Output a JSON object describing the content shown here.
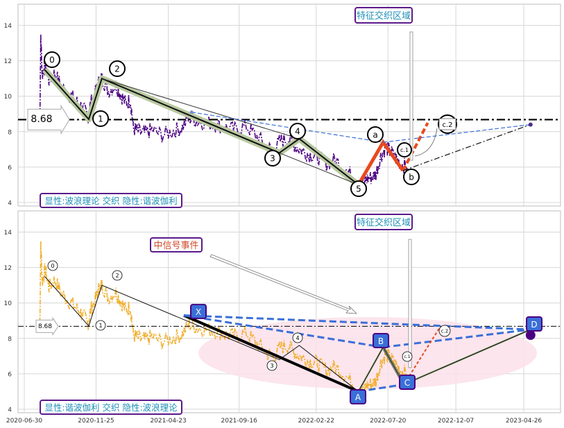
{
  "chart_data": [
    {
      "type": "line",
      "panel": "top",
      "ylim": [
        3.8,
        15.2
      ],
      "yticks": [
        4,
        6,
        8,
        10,
        12,
        14
      ],
      "grid": true,
      "price_color": "#4b0082",
      "price_series": [
        [
          "2020-08-01",
          8.4
        ],
        [
          "2020-08-03",
          13.4
        ],
        [
          "2020-08-06",
          11.2
        ],
        [
          "2020-08-12",
          11.9
        ],
        [
          "2020-08-20",
          10.9
        ],
        [
          "2020-09-01",
          11.3
        ],
        [
          "2020-09-15",
          10.5
        ],
        [
          "2020-10-01",
          10.1
        ],
        [
          "2020-10-15",
          9.7
        ],
        [
          "2020-10-28",
          9.4
        ],
        [
          "2020-11-08",
          8.8
        ],
        [
          "2020-11-14",
          9.6
        ],
        [
          "2020-11-25",
          10.3
        ],
        [
          "2020-12-02",
          10.9
        ],
        [
          "2020-12-08",
          11.0
        ],
        [
          "2020-12-20",
          10.3
        ],
        [
          "2021-01-05",
          10.6
        ],
        [
          "2021-01-15",
          10.1
        ],
        [
          "2021-01-25",
          9.6
        ],
        [
          "2021-02-04",
          9.8
        ],
        [
          "2021-02-10",
          8.2
        ],
        [
          "2021-02-20",
          8.0
        ],
        [
          "2021-03-05",
          7.9
        ],
        [
          "2021-03-20",
          8.1
        ],
        [
          "2021-04-10",
          7.8
        ],
        [
          "2021-05-01",
          8.0
        ],
        [
          "2021-05-20",
          8.2
        ],
        [
          "2021-06-05",
          8.8
        ],
        [
          "2021-06-20",
          8.6
        ],
        [
          "2021-07-10",
          8.5
        ],
        [
          "2021-08-01",
          8.4
        ],
        [
          "2021-08-20",
          8.2
        ],
        [
          "2021-09-10",
          8.1
        ],
        [
          "2021-10-01",
          8.3
        ],
        [
          "2021-10-20",
          7.8
        ],
        [
          "2021-11-10",
          7.2
        ],
        [
          "2021-11-25",
          6.9
        ],
        [
          "2021-12-10",
          7.5
        ],
        [
          "2021-12-25",
          7.6
        ],
        [
          "2022-01-10",
          7.2
        ],
        [
          "2022-01-25",
          6.9
        ],
        [
          "2022-02-10",
          6.7
        ],
        [
          "2022-02-25",
          6.6
        ],
        [
          "2022-03-15",
          6.2
        ],
        [
          "2022-04-01",
          6.4
        ],
        [
          "2022-04-20",
          6.0
        ],
        [
          "2022-05-10",
          5.4
        ],
        [
          "2022-05-25",
          5.1
        ],
        [
          "2022-06-05",
          5.3
        ],
        [
          "2022-06-15",
          5.4
        ],
        [
          "2022-06-25",
          5.6
        ],
        [
          "2022-07-05",
          6.6
        ],
        [
          "2022-07-15",
          7.1
        ],
        [
          "2022-07-25",
          6.9
        ],
        [
          "2022-08-05",
          6.5
        ],
        [
          "2022-08-15",
          6.2
        ],
        [
          "2022-08-28",
          6.0
        ]
      ],
      "waves": [
        {
          "label": "0",
          "date": "2020-08-11",
          "value": 11.5
        },
        {
          "label": "1",
          "date": "2020-11-10",
          "value": 8.7
        },
        {
          "label": "2",
          "date": "2020-12-07",
          "value": 11.0
        },
        {
          "label": "3",
          "date": "2021-12-08",
          "value": 6.8
        },
        {
          "label": "4",
          "date": "2022-01-18",
          "value": 7.6
        },
        {
          "label": "5",
          "date": "2022-05-20",
          "value": 5.0
        },
        {
          "label": "a",
          "date": "2022-07-10",
          "value": 7.4
        },
        {
          "label": "b",
          "date": "2022-08-20",
          "value": 5.8
        },
        {
          "label": "c.1",
          "date": "2022-08-10",
          "value": 6.3
        },
        {
          "label": "c.2",
          "date": "2022-10-15",
          "value": 8.5
        },
        {
          "label": "c",
          "date": "2022-10-10",
          "value": 8.5
        }
      ],
      "channel_lines": [
        {
          "from": [
            "2021-06-10",
            9.1
          ],
          "to": [
            "2022-07-10",
            7.4
          ]
        },
        {
          "from": [
            "2022-07-10",
            7.4
          ],
          "to": [
            "2023-05-10",
            8.4
          ]
        },
        {
          "from": [
            "2022-08-20",
            5.8
          ],
          "to": [
            "2023-05-10",
            8.4
          ]
        }
      ],
      "endpoint": [
        "2023-05-10",
        8.4
      ],
      "level_value": 8.68,
      "level_label": "8.68",
      "zone_label": "特征交织区域",
      "legend_text": "显性:波浪理论 交织 隐性:谐波伽利"
    },
    {
      "type": "line",
      "panel": "bottom",
      "ylim": [
        3.8,
        15.2
      ],
      "yticks": [
        4,
        6,
        8,
        10,
        12,
        14
      ],
      "grid": true,
      "price_color": "#f0b030",
      "harmonic_points": [
        {
          "label": "X",
          "date": "2021-05-25",
          "value": 9.3
        },
        {
          "label": "A",
          "date": "2022-05-20",
          "value": 5.0
        },
        {
          "label": "B",
          "date": "2022-07-10",
          "value": 7.5
        },
        {
          "label": "C",
          "date": "2022-08-22",
          "value": 5.4
        },
        {
          "label": "D",
          "date": "2023-05-10",
          "value": 8.5
        }
      ],
      "wave_labels": [
        "0",
        "1",
        "2",
        "3",
        "4",
        "c.1",
        "c.2"
      ],
      "level_label": "8.68",
      "zone_label": "特征交织区域",
      "event_label": "中信号事件",
      "legend_text": "显性:谐波伽利 交织 隐性:波浪理论"
    }
  ],
  "x_ticks": [
    "2020-06-30",
    "2020-11-25",
    "2021-04-23",
    "2021-09-16",
    "2022-02-22",
    "2022-07-20",
    "2022-12-07",
    "2023-04-26"
  ],
  "y_tick_labels": [
    "4",
    "6",
    "8",
    "10",
    "12",
    "14"
  ],
  "colors": {
    "grid": "#d6d6d6",
    "frame": "#bcbcbc",
    "wave_band": "#b8c8a0",
    "accent_orange": "#e84a1c",
    "blue_dash": "#3a6fd8",
    "label_border": "#5a1a8a",
    "label_text": "#1f8fb8",
    "event_text": "#d04a2a",
    "zone_fill": "#fbe0ea"
  }
}
